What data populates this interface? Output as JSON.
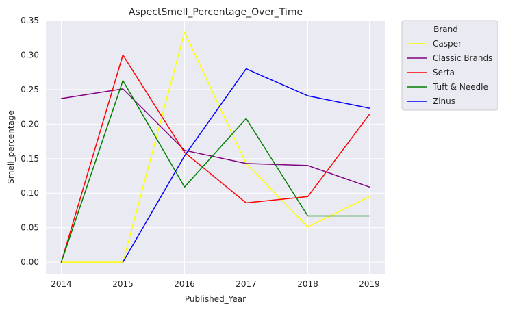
{
  "chart_data": {
    "type": "line",
    "title": "AspectSmell_Percentage_Over_Time",
    "xlabel": "Published_Year",
    "ylabel": "Smell_percentage",
    "x": [
      2014,
      2015,
      2016,
      2017,
      2018,
      2019
    ],
    "xlim": [
      2013.75,
      2019.25
    ],
    "ylim": [
      -0.0167,
      0.35
    ],
    "yticks": [
      0.0,
      0.05,
      0.1,
      0.15,
      0.2,
      0.25,
      0.3,
      0.35
    ],
    "yticklabels": [
      "0.00",
      "0.05",
      "0.10",
      "0.15",
      "0.20",
      "0.25",
      "0.30",
      "0.35"
    ],
    "grid": true,
    "background": "#eaeaf2",
    "legend": {
      "title": "Brand",
      "placement": "outside-right-top"
    },
    "series": [
      {
        "name": "Casper",
        "color": "#ffff00",
        "points": [
          [
            2014,
            0.0
          ],
          [
            2015,
            0.0
          ],
          [
            2016,
            0.333
          ],
          [
            2017,
            0.143
          ],
          [
            2018,
            0.051
          ],
          [
            2019,
            0.095
          ]
        ]
      },
      {
        "name": "Classic Brands",
        "color": "#800080",
        "points": [
          [
            2014,
            0.237
          ],
          [
            2015,
            0.251
          ],
          [
            2016,
            0.162
          ],
          [
            2017,
            0.143
          ],
          [
            2018,
            0.14
          ],
          [
            2019,
            0.109
          ]
        ]
      },
      {
        "name": "Serta",
        "color": "#ff0000",
        "points": [
          [
            2014,
            0.0
          ],
          [
            2015,
            0.3
          ],
          [
            2016,
            0.159
          ],
          [
            2017,
            0.086
          ],
          [
            2018,
            0.095
          ],
          [
            2019,
            0.214
          ]
        ]
      },
      {
        "name": "Tuft & Needle",
        "color": "#008000",
        "points": [
          [
            2014,
            0.0
          ],
          [
            2015,
            0.263
          ],
          [
            2016,
            0.109
          ],
          [
            2017,
            0.208
          ],
          [
            2018,
            0.067
          ],
          [
            2019,
            0.067
          ]
        ]
      },
      {
        "name": "Zinus",
        "color": "#0000ff",
        "points": [
          [
            2015,
            0.0
          ],
          [
            2016,
            0.154
          ],
          [
            2017,
            0.28
          ],
          [
            2018,
            0.241
          ],
          [
            2019,
            0.223
          ]
        ]
      }
    ]
  }
}
